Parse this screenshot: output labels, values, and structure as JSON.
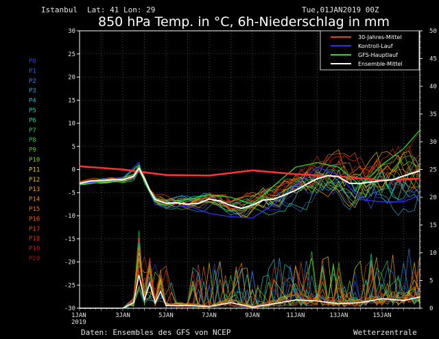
{
  "header": {
    "location": "Istanbul",
    "coords": "Lat: 41  Lon: 29",
    "run": "Tue,01JAN2019  00Z",
    "title": "850 hPa Temp. in °C, 6h-Niederschlag in mm"
  },
  "footer": {
    "source": "Daten: Ensembles des GFS von NCEP",
    "brand": "Wetterzentrale"
  },
  "members": [
    {
      "label": "P0",
      "color": "#3a3ad8"
    },
    {
      "label": "P1",
      "color": "#2d5fe6"
    },
    {
      "label": "P2",
      "color": "#2a7ff0"
    },
    {
      "label": "P3",
      "color": "#22a3e0"
    },
    {
      "label": "P4",
      "color": "#19bfd0"
    },
    {
      "label": "P5",
      "color": "#19d0c0"
    },
    {
      "label": "P6",
      "color": "#19d69a"
    },
    {
      "label": "P7",
      "color": "#19d070"
    },
    {
      "label": "P8",
      "color": "#22d040"
    },
    {
      "label": "P9",
      "color": "#40d022"
    },
    {
      "label": "P10",
      "color": "#80d010"
    },
    {
      "label": "P11",
      "color": "#e0d000"
    },
    {
      "label": "P12",
      "color": "#e6b800"
    },
    {
      "label": "P13",
      "color": "#e6a000"
    },
    {
      "label": "P14",
      "color": "#e68a00"
    },
    {
      "label": "P15",
      "color": "#e67300"
    },
    {
      "label": "P16",
      "color": "#e65a00"
    },
    {
      "label": "P17",
      "color": "#e04010"
    },
    {
      "label": "P18",
      "color": "#d03010"
    },
    {
      "label": "P19",
      "color": "#c02010"
    },
    {
      "label": "P20",
      "color": "#a01a10"
    }
  ],
  "chart_data": {
    "type": "line",
    "x_tick_labels": [
      "1JAN\n2019",
      "3JAN",
      "5JAN",
      "7JAN",
      "9JAN",
      "11JAN",
      "13JAN",
      "15JAN"
    ],
    "x_range_days": [
      0,
      15.75
    ],
    "y_left_ticks": [
      30,
      25,
      20,
      15,
      10,
      5,
      0,
      -5,
      -10,
      -15,
      -20,
      -25,
      -30
    ],
    "y_left_range": [
      -30,
      30
    ],
    "y_right_ticks": [
      50,
      45,
      40,
      35,
      30,
      25,
      20,
      15,
      10,
      5,
      0
    ],
    "y_right_range": [
      0,
      50
    ],
    "grid": true,
    "legend_position": "top-right",
    "legend": [
      {
        "name": "30-Jahres-Mittel",
        "color": "#ff3030"
      },
      {
        "name": "Kontroll-Lauf",
        "color": "#3030ff"
      },
      {
        "name": "GFS-Hauptlauf",
        "color": "#20e020"
      },
      {
        "name": "Ensemble-Mittel",
        "color": "#ffffff"
      }
    ],
    "series": [
      {
        "name": "30-Jahres-Mittel",
        "role": "climate",
        "x": [
          0,
          2,
          4,
          6,
          8,
          10,
          12,
          14,
          15.75
        ],
        "y": [
          0.7,
          0.0,
          -1.2,
          -1.3,
          -0.2,
          -1.0,
          -1.5,
          -2.3,
          -2.0
        ]
      },
      {
        "name": "Ensemble-Mittel",
        "role": "mean",
        "x": [
          0,
          0.5,
          1,
          1.5,
          2,
          2.5,
          2.75,
          3,
          3.25,
          3.5,
          4,
          4.5,
          5,
          5.5,
          6,
          6.5,
          7,
          7.5,
          8,
          8.5,
          9,
          9.5,
          10,
          10.5,
          11,
          11.5,
          12,
          12.5,
          13,
          13.5,
          14,
          14.5,
          15,
          15.75
        ],
        "y": [
          -3,
          -2.5,
          -2.4,
          -2.2,
          -2.2,
          -1.5,
          0.3,
          -2.0,
          -4.5,
          -6.5,
          -7.3,
          -7.2,
          -7.5,
          -7.3,
          -6.4,
          -6.8,
          -7.8,
          -8.4,
          -7.7,
          -6.6,
          -6.4,
          -5.5,
          -4.5,
          -3.2,
          -2.0,
          -1.3,
          -1.6,
          -3.0,
          -3.0,
          -2.7,
          -2.4,
          -2.2,
          -1.4,
          -0.3
        ]
      },
      {
        "name": "Kontroll-Lauf",
        "role": "control",
        "x": [
          0,
          1,
          2,
          2.75,
          3,
          3.5,
          4,
          5,
          6,
          7,
          8,
          9,
          10,
          11,
          12,
          13,
          14,
          15,
          15.75
        ],
        "y": [
          -3,
          -2.6,
          -1.8,
          1.5,
          -2.5,
          -7.5,
          -8.3,
          -7.8,
          -9.5,
          -10.2,
          -10.5,
          -7.5,
          -3.5,
          0.5,
          -1.2,
          -6.5,
          -7.0,
          -7.0,
          -5.5
        ]
      },
      {
        "name": "GFS-Hauptlauf",
        "role": "operational",
        "x": [
          0,
          1,
          2,
          2.75,
          3,
          3.5,
          4,
          5,
          6,
          7,
          8,
          9,
          10,
          11,
          12,
          13,
          14,
          15,
          15.75
        ],
        "y": [
          -3.2,
          -2.8,
          -2.0,
          1.0,
          -2.8,
          -7.0,
          -7.8,
          -6.5,
          -5.5,
          -6.0,
          -7.5,
          -3.5,
          0.5,
          1.5,
          0.5,
          -3.5,
          1.0,
          4.5,
          8.5
        ]
      }
    ],
    "precip_mean_mm": {
      "x": [
        0,
        2,
        2.5,
        2.75,
        3,
        3.25,
        3.5,
        3.75,
        4,
        5,
        6,
        7,
        8,
        9,
        10,
        11,
        12,
        13,
        14,
        15,
        15.75
      ],
      "y": [
        0,
        0,
        1.0,
        6.0,
        1.5,
        4.5,
        1.0,
        3.0,
        0.5,
        0.5,
        0.3,
        1.0,
        0.2,
        0.8,
        1.5,
        1.3,
        0.8,
        1.0,
        1.7,
        1.4,
        2.0
      ]
    }
  }
}
